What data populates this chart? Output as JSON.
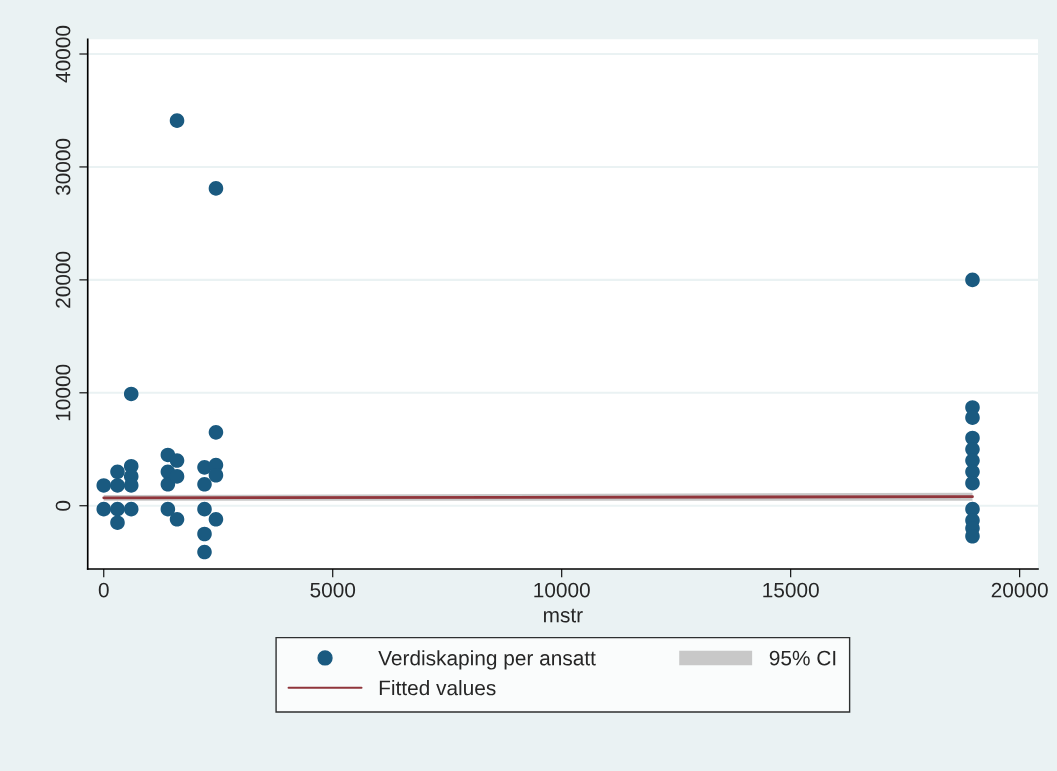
{
  "chart_data": {
    "type": "scatter",
    "xlabel": "mstr",
    "xlim": [
      -350,
      20400
    ],
    "xticks": [
      0,
      5000,
      10000,
      15000,
      20000
    ],
    "ylim": [
      -5600,
      41300
    ],
    "yticks": [
      0,
      10000,
      20000,
      30000,
      40000
    ],
    "grid": "y",
    "legend": "bottom",
    "series": [
      {
        "name": "Verdiskaping per ansatt",
        "color": "#1a5a80",
        "marker": "circle",
        "x": [
          0,
          0,
          300,
          300,
          300,
          300,
          600,
          600,
          600,
          600,
          600,
          1400,
          1400,
          1400,
          1400,
          1600,
          1600,
          1600,
          1600,
          2200,
          2200,
          2200,
          2200,
          2200,
          2450,
          2450,
          2450,
          2450,
          2450,
          18970,
          18970,
          18970,
          18970,
          18970,
          18970,
          18970,
          18970,
          18970,
          18970,
          18970,
          18970
        ],
        "values": [
          1800,
          -300,
          3000,
          1800,
          -300,
          -1500,
          9900,
          3500,
          2600,
          1800,
          -300,
          4500,
          3000,
          1900,
          -300,
          34100,
          4000,
          2600,
          -1200,
          3400,
          1900,
          -300,
          -2500,
          -4100,
          28100,
          6500,
          3600,
          2700,
          -1200,
          20000,
          8700,
          7800,
          6000,
          5000,
          4000,
          3000,
          2000,
          -300,
          -1300,
          -2000,
          -2700
        ]
      },
      {
        "name": "Fitted values",
        "type": "line",
        "color": "#90353b",
        "line_style": "solid",
        "x": [
          0,
          18970
        ],
        "values": [
          700,
          800
        ],
        "lower": [
          450,
          450
        ],
        "upper": [
          950,
          1150
        ]
      },
      {
        "name": "95% CI",
        "type": "area",
        "color": "#c8c8c8"
      }
    ]
  }
}
